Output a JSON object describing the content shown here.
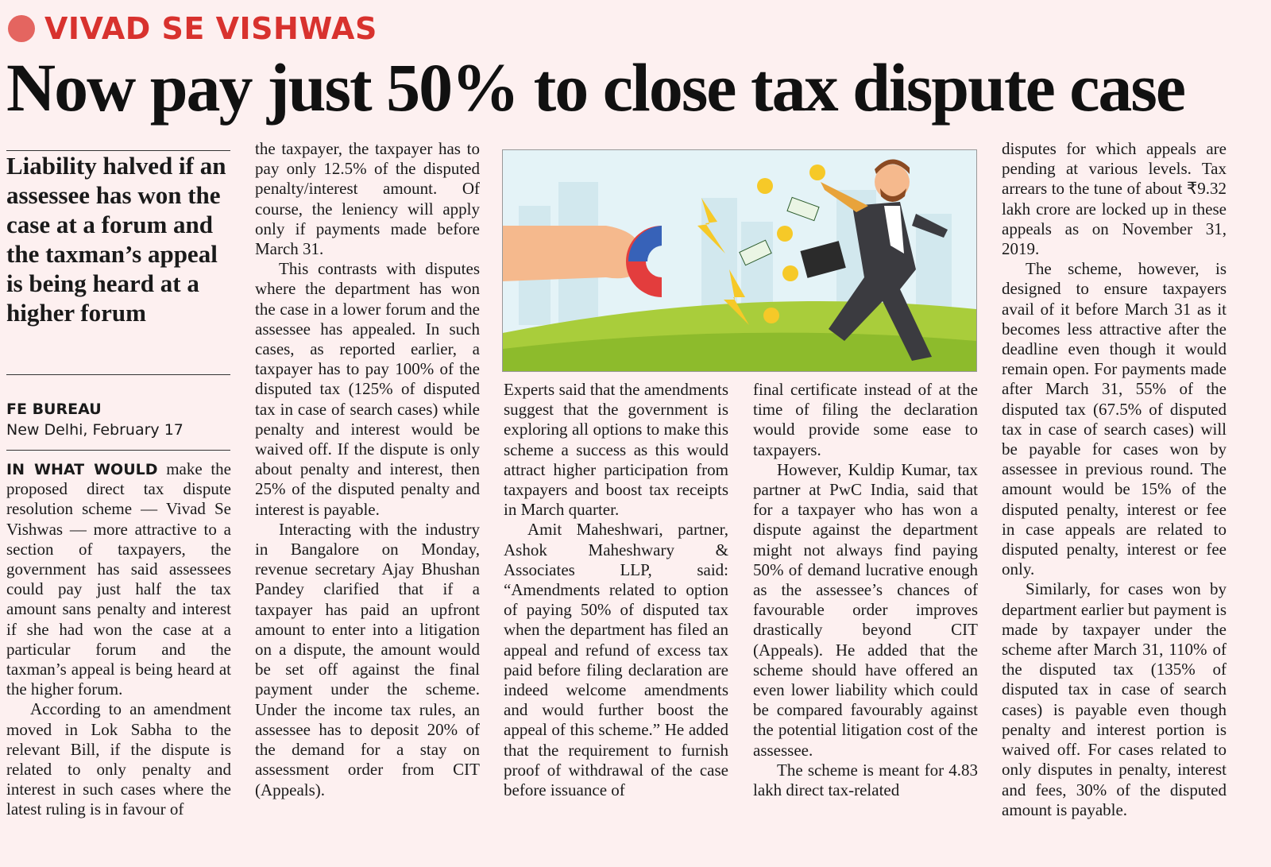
{
  "header": {
    "kicker": "VIVAD SE VISHWAS",
    "headline": "Now pay just 50% to close tax dispute case"
  },
  "standfirst": "Liability halved if an assessee has won the case at a forum and the taxman’s appeal is being heard at a higher forum",
  "byline": {
    "agency": "FE BUREAU",
    "dateline": "New Delhi, February 17"
  },
  "body": {
    "lead": "IN WHAT WOULD",
    "columns": [
      [
        "make the proposed direct tax dispute resolution scheme — Vivad Se Vishwas — more attractive to a section of taxpayers, the government has said assessees could pay just half the tax amount sans penalty and interest if she had won the case at a particular forum and the taxman’s appeal is being heard at the higher forum.",
        "According to an amendment moved in Lok Sabha to the relevant Bill, if the dispute is related to only penalty and interest in such cases where the latest ruling is in favour of"
      ],
      [
        "the taxpayer, the taxpayer has to pay only 12.5% of the disputed penalty/interest amount. Of course, the leniency will apply only if payments made before March 31.",
        "This contrasts with disputes where the department has won the case in a lower forum and the assessee has appealed. In such cases, as reported earlier, a taxpayer has to pay 100% of the disputed tax (125% of disputed tax in case of search cases) while penalty and interest would be waived off. If the dispute is only about penalty and interest, then 25% of the disputed penalty and interest is payable.",
        "Interacting with the industry in Bangalore on Monday, revenue secretary Ajay Bhushan Pandey clarified that if a taxpayer has paid an upfront amount to enter into a litigation on a dispute, the amount would be set off against the final payment under the scheme. Under the income tax rules, an assessee has to deposit 20% of the demand for a stay on assessment order from CIT (Appeals)."
      ],
      [
        "Experts said that the amendments suggest that the government is exploring all options to make this scheme a success as this would attract higher participation from taxpayers and boost tax receipts in March quarter.",
        "Amit Maheshwari, partner, Ashok Maheshwary & Associates LLP, said: “Amendments related to option of paying 50% of disputed tax when the department has filed an appeal and refund of excess tax paid before filing declaration are indeed welcome amendments and would further boost the appeal of this scheme.” He added that the requirement to furnish proof of withdrawal of the case before issuance of"
      ],
      [
        "final certificate instead of at the time of filing the declaration would provide some ease to taxpayers.",
        "However, Kuldip Kumar, tax partner at PwC India, said that for a taxpayer who has won a dispute against the department might not always find paying 50% of demand lucrative enough as the assessee’s chances of favourable order improves drastically beyond CIT (Appeals). He added that the scheme should have offered an even lower liability which could be compared favourably against the potential litigation cost of the assessee.",
        "The scheme is meant for 4.83 lakh direct tax-related"
      ],
      [
        "disputes for which appeals are pending at various levels. Tax arrears to the tune of about ₹9.32 lakh crore are locked up in these appeals as on November 31, 2019.",
        "The scheme, however, is designed to ensure taxpayers avail of it before March 31 as it becomes less attractive after the deadline even though it would remain open. For payments made after March 31, 55% of the disputed tax (67.5% of disputed tax in case of search cases) will be payable for cases won by assessee in previous round. The amount would be 15% of the disputed penalty, interest or fee in case appeals are related to disputed penalty, interest or fee only.",
        "Similarly, for cases won by department earlier but payment is made by taxpayer under the scheme after March 31, 110% of the disputed tax (135% of disputed tax in case of search cases) is payable even though penalty and interest portion is waived off. For cases related to only disputes in penalty, interest and fees, 30% of the disputed amount is payable."
      ]
    ]
  }
}
